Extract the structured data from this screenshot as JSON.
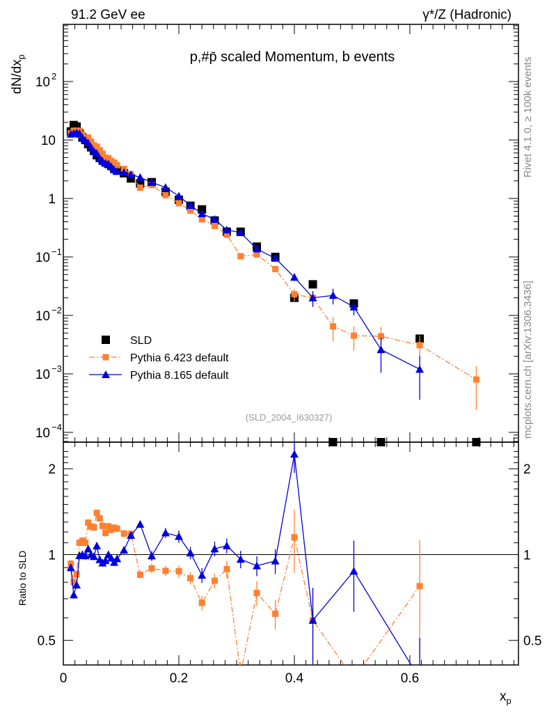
{
  "chart_data": {
    "type": "scatter",
    "header_left": "91.2 GeV ee",
    "header_right": "γ*/Z (Hadronic)",
    "title": "p,#p̄ scaled Momentum, b events",
    "ylabel": "dN/dx",
    "ylabel_sub": "p",
    "xlabel": "x",
    "xlabel_sub": "p",
    "ratio_ylabel": "Ratio to SLD",
    "side_label_top": "Rivet 4.1.0, ≥ 100k events",
    "side_label_bottom": "mcplots.cern.ch [arXiv:1306.3436]",
    "analysis_id": "(SLD_2004_I630327)",
    "xlim": [
      0,
      0.788
    ],
    "ylim": [
      6.8e-05,
      950
    ],
    "ratio_ylim": [
      0.41,
      2.48
    ],
    "xticks": [
      {
        "v": 0,
        "label": "0"
      },
      {
        "v": 0.2,
        "label": "0.2"
      },
      {
        "v": 0.4,
        "label": "0.4"
      },
      {
        "v": 0.6,
        "label": "0.6"
      }
    ],
    "yticks": [
      {
        "v": 100,
        "label": "10",
        "exp": "2"
      },
      {
        "v": 10,
        "label": "10"
      },
      {
        "v": 1,
        "label": "1"
      },
      {
        "v": 0.1,
        "label": "10",
        "exp": "−1"
      },
      {
        "v": 0.01,
        "label": "10",
        "exp": "−2"
      },
      {
        "v": 0.001,
        "label": "10",
        "exp": "−3"
      },
      {
        "v": 0.0001,
        "label": "10",
        "exp": "−4"
      }
    ],
    "ratio_yticks": [
      {
        "v": 2,
        "label": "2"
      },
      {
        "v": 1,
        "label": "1"
      },
      {
        "v": 0.5,
        "label": "0.5"
      }
    ],
    "x": [
      0.013,
      0.018,
      0.023,
      0.028,
      0.033,
      0.038,
      0.043,
      0.048,
      0.053,
      0.058,
      0.063,
      0.068,
      0.073,
      0.078,
      0.083,
      0.088,
      0.093,
      0.105,
      0.117,
      0.133,
      0.153,
      0.177,
      0.2,
      0.22,
      0.24,
      0.262,
      0.283,
      0.307,
      0.335,
      0.367,
      0.4,
      0.432,
      0.467,
      0.503,
      0.55,
      0.617,
      0.715
    ],
    "series": [
      {
        "name": "SLD",
        "color": "#000000",
        "marker": "square",
        "values": [
          14,
          18,
          17,
          13,
          11,
          10,
          8.5,
          7.5,
          6.5,
          5.5,
          5,
          4.6,
          4.2,
          3.9,
          3.6,
          3.3,
          3.0,
          2.7,
          2.2,
          1.8,
          1.9,
          1.3,
          0.95,
          0.75,
          0.65,
          0.42,
          0.27,
          0.27,
          0.15,
          0.1,
          0.02,
          0.034,
          5e-05,
          0.016,
          5e-05,
          0.004,
          5e-05
        ]
      },
      {
        "name": "Pythia 6.423 default",
        "color": "#ff8030",
        "marker": "square",
        "dash": "8,3,2,3",
        "values": [
          13,
          14.4,
          14.5,
          14.3,
          12.3,
          11,
          11,
          9.4,
          8.1,
          7.7,
          6.7,
          5.8,
          5.0,
          4.9,
          4.4,
          4.1,
          3.7,
          3.2,
          2.6,
          1.53,
          1.7,
          1.14,
          0.83,
          0.62,
          0.44,
          0.34,
          0.24,
          0.103,
          0.11,
          0.062,
          0.023,
          0.02,
          0.0065,
          0.0045,
          0.0044,
          0.0031,
          0.0008
        ],
        "rel_err": [
          0.03,
          0.03,
          0.03,
          0.03,
          0.03,
          0.03,
          0.03,
          0.03,
          0.03,
          0.03,
          0.03,
          0.03,
          0.03,
          0.03,
          0.03,
          0.03,
          0.03,
          0.03,
          0.03,
          0.03,
          0.04,
          0.04,
          0.05,
          0.05,
          0.06,
          0.06,
          0.07,
          0.1,
          0.1,
          0.12,
          0.25,
          0.3,
          0.45,
          0.45,
          0.45,
          0.45,
          0.7
        ]
      },
      {
        "name": "Pythia 8.165 default",
        "color": "#0000dd",
        "marker": "triangle",
        "dash": "",
        "values": [
          12.6,
          13,
          13.3,
          12.9,
          11,
          9.9,
          8.9,
          7.5,
          6.4,
          5.9,
          4.8,
          4.3,
          4.0,
          3.9,
          3.5,
          3.1,
          2.9,
          2.8,
          2.57,
          2.3,
          1.88,
          1.55,
          1.1,
          0.76,
          0.55,
          0.44,
          0.29,
          0.26,
          0.137,
          0.095,
          0.045,
          0.02,
          0.022,
          0.014,
          0.0026,
          0.0012,
          null
        ],
        "rel_err": [
          0.03,
          0.03,
          0.03,
          0.03,
          0.03,
          0.03,
          0.03,
          0.03,
          0.03,
          0.03,
          0.03,
          0.03,
          0.03,
          0.03,
          0.03,
          0.03,
          0.03,
          0.03,
          0.03,
          0.03,
          0.04,
          0.04,
          0.05,
          0.05,
          0.06,
          0.06,
          0.06,
          0.07,
          0.08,
          0.1,
          0.14,
          0.3,
          0.3,
          0.28,
          0.6,
          0.7,
          0
        ]
      }
    ],
    "legend_placement": "bottom-left"
  }
}
